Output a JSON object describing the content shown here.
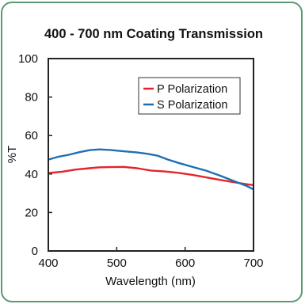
{
  "chart_data": {
    "type": "line",
    "title": "400 - 700 nm Coating Transmission",
    "xlabel": "Wavelength (nm)",
    "ylabel": "%T",
    "xlim": [
      400,
      700
    ],
    "ylim": [
      0,
      100
    ],
    "xticks": [
      400,
      500,
      600,
      700
    ],
    "yticks": [
      0,
      20,
      40,
      60,
      80,
      100
    ],
    "grid": false,
    "legend_position": "top-right",
    "series": [
      {
        "name": "P Polarization",
        "color": "#e3242b",
        "points": [
          [
            400,
            40.5
          ],
          [
            420,
            41.2
          ],
          [
            440,
            42.3
          ],
          [
            460,
            43.0
          ],
          [
            475,
            43.5
          ],
          [
            490,
            43.6
          ],
          [
            510,
            43.7
          ],
          [
            530,
            43.0
          ],
          [
            550,
            41.8
          ],
          [
            570,
            41.3
          ],
          [
            590,
            40.6
          ],
          [
            610,
            39.6
          ],
          [
            630,
            38.3
          ],
          [
            650,
            37.0
          ],
          [
            670,
            35.8
          ],
          [
            690,
            34.7
          ],
          [
            700,
            34.2
          ]
        ]
      },
      {
        "name": "S Polarization",
        "color": "#1f6fb3",
        "points": [
          [
            400,
            47.5
          ],
          [
            415,
            49.0
          ],
          [
            430,
            50.0
          ],
          [
            445,
            51.3
          ],
          [
            460,
            52.4
          ],
          [
            475,
            52.8
          ],
          [
            490,
            52.5
          ],
          [
            510,
            51.8
          ],
          [
            530,
            51.2
          ],
          [
            545,
            50.5
          ],
          [
            560,
            49.5
          ],
          [
            575,
            47.5
          ],
          [
            590,
            45.8
          ],
          [
            610,
            43.8
          ],
          [
            630,
            41.8
          ],
          [
            650,
            39.3
          ],
          [
            670,
            36.5
          ],
          [
            690,
            33.8
          ],
          [
            700,
            32.0
          ]
        ]
      }
    ]
  }
}
